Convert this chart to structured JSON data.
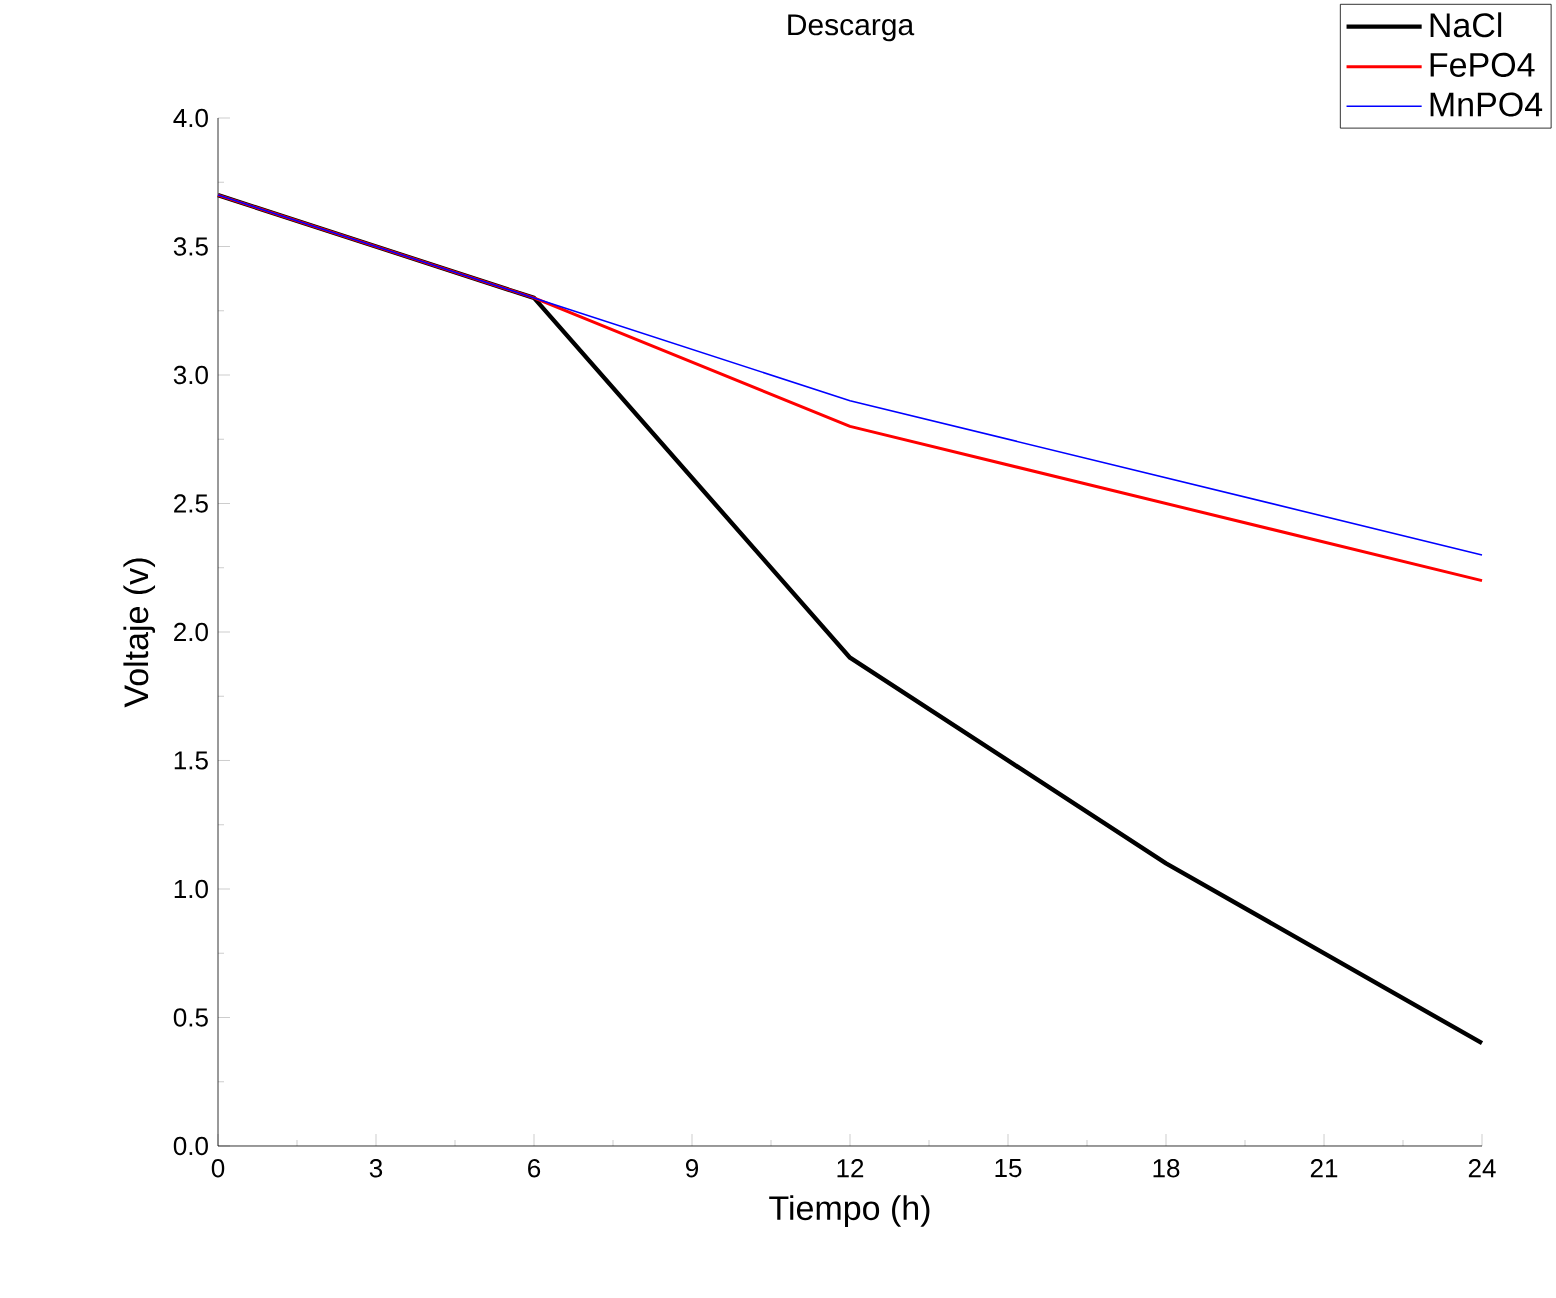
{
  "chart_data": {
    "type": "line",
    "title": "Descarga",
    "xlabel": "Tiempo (h)",
    "ylabel": "Voltaje (v)",
    "x": [
      0,
      6,
      12,
      18,
      24
    ],
    "series": [
      {
        "name": "NaCl",
        "color": "#000000",
        "values": [
          3.7,
          3.3,
          1.9,
          1.1,
          0.4
        ]
      },
      {
        "name": "FePO4",
        "color": "#ff0000",
        "values": [
          3.7,
          3.3,
          2.8,
          2.5,
          2.2
        ]
      },
      {
        "name": "MnPO4",
        "color": "#0000ff",
        "values": [
          3.7,
          3.3,
          2.9,
          2.6,
          2.3
        ]
      }
    ],
    "xlim": [
      0,
      24
    ],
    "xticks": [
      0,
      3,
      6,
      9,
      12,
      15,
      18,
      21,
      24
    ],
    "ylim": [
      0,
      4
    ],
    "yticks": [
      {
        "value": 0,
        "label": "0.0"
      },
      {
        "value": 0.5,
        "label": "0.5"
      },
      {
        "value": 1,
        "label": "1.0"
      },
      {
        "value": 1.5,
        "label": "1.5"
      },
      {
        "value": 2,
        "label": "2.0"
      },
      {
        "value": 2.5,
        "label": "2.5"
      },
      {
        "value": 3,
        "label": "3.0"
      },
      {
        "value": 3.5,
        "label": "3.5"
      },
      {
        "value": 4,
        "label": "4.0"
      }
    ],
    "legend": "top right",
    "grid": false,
    "marker": "none",
    "line_style": "solid"
  }
}
